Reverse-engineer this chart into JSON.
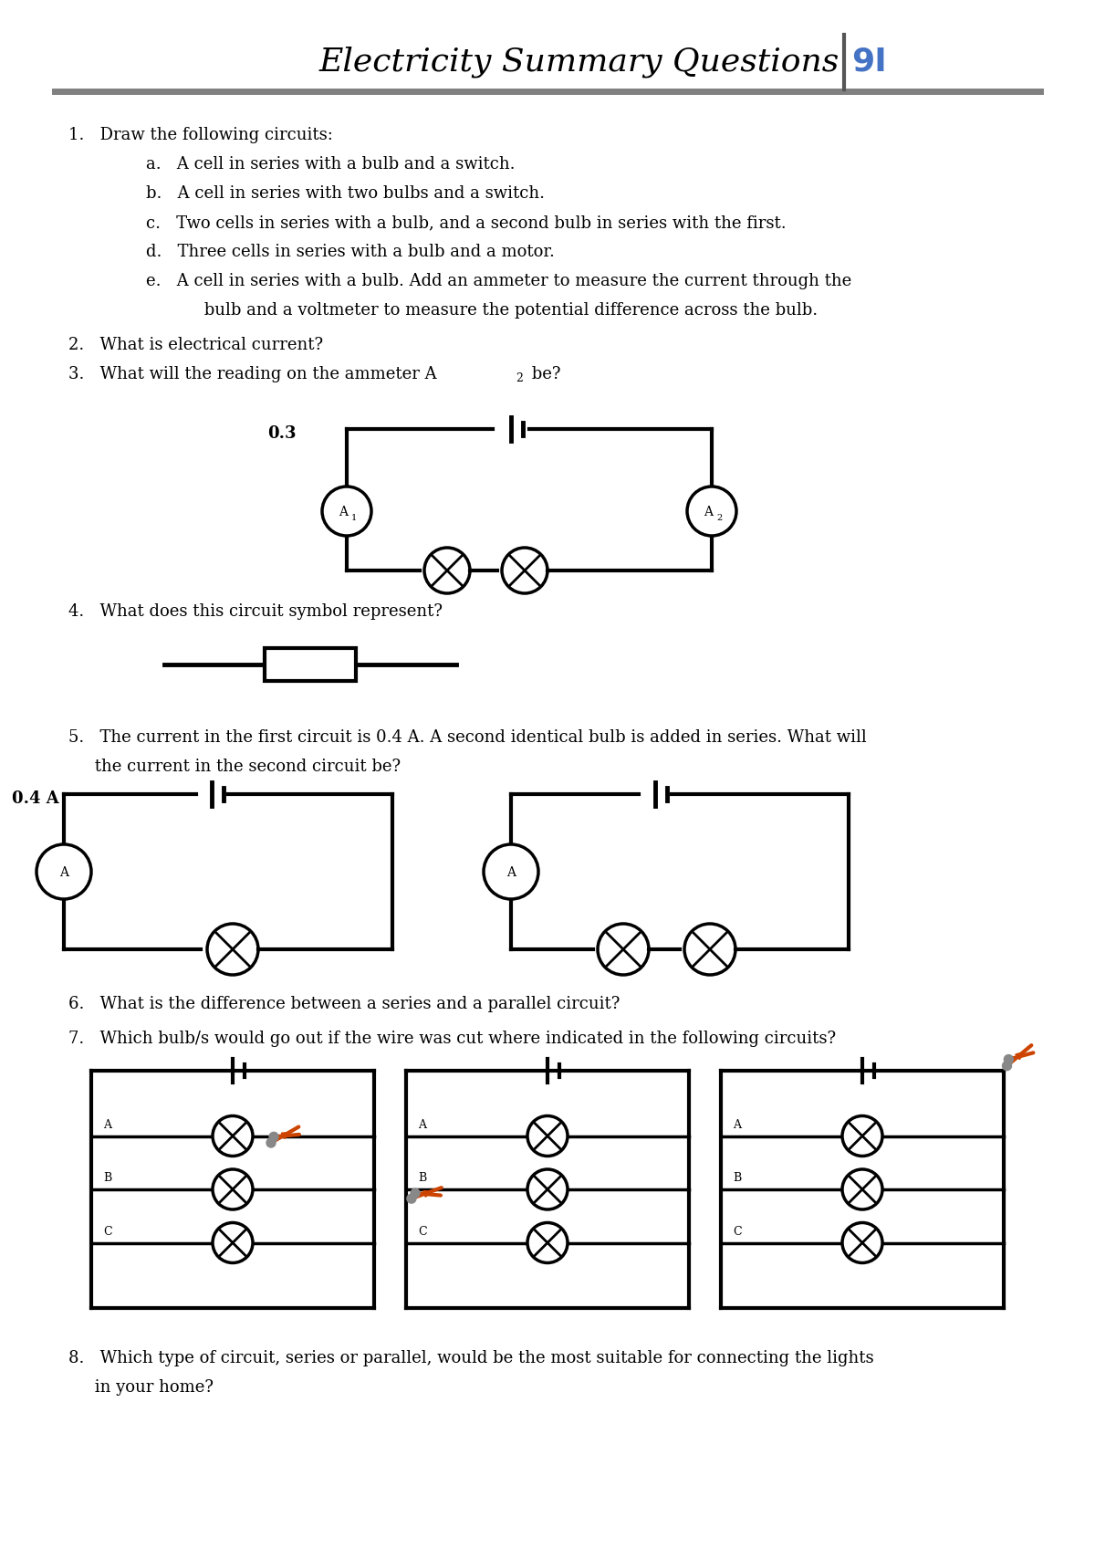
{
  "title": "Electricity Summary Questions",
  "page_num": "9I",
  "title_color": "#000000",
  "page_num_color": "#4472c4",
  "separator_color": "#808080",
  "bg_color": "#ffffff",
  "text_color": "#000000",
  "q1_text": "1.   Draw the following circuits:",
  "q1a": "a.   A cell in series with a bulb and a switch.",
  "q1b": "b.   A cell in series with two bulbs and a switch.",
  "q1c": "c.   Two cells in series with a bulb, and a second bulb in series with the first.",
  "q1d": "d.   Three cells in series with a bulb and a motor.",
  "q1e1": "e.   A cell in series with a bulb. Add an ammeter to measure the current through the",
  "q1e2": "     bulb and a voltmeter to measure the potential difference across the bulb.",
  "q2_text": "2.   What is electrical current?",
  "q3_text_pre": "3.   What will the reading on the ammeter A",
  "q3_text_post": " be?",
  "q4_text": "4.   What does this circuit symbol represent?",
  "q5_text1": "5.   The current in the first circuit is 0.4 A. A second identical bulb is added in series. What will",
  "q5_text2": "     the current in the second circuit be?",
  "q6_text": "6.   What is the difference between a series and a parallel circuit?",
  "q7_text": "7.   Which bulb/s would go out if the wire was cut where indicated in the following circuits?",
  "q8_text1": "8.   Which type of circuit, series or parallel, would be the most suitable for connecting the lights",
  "q8_text2": "     in your home?"
}
